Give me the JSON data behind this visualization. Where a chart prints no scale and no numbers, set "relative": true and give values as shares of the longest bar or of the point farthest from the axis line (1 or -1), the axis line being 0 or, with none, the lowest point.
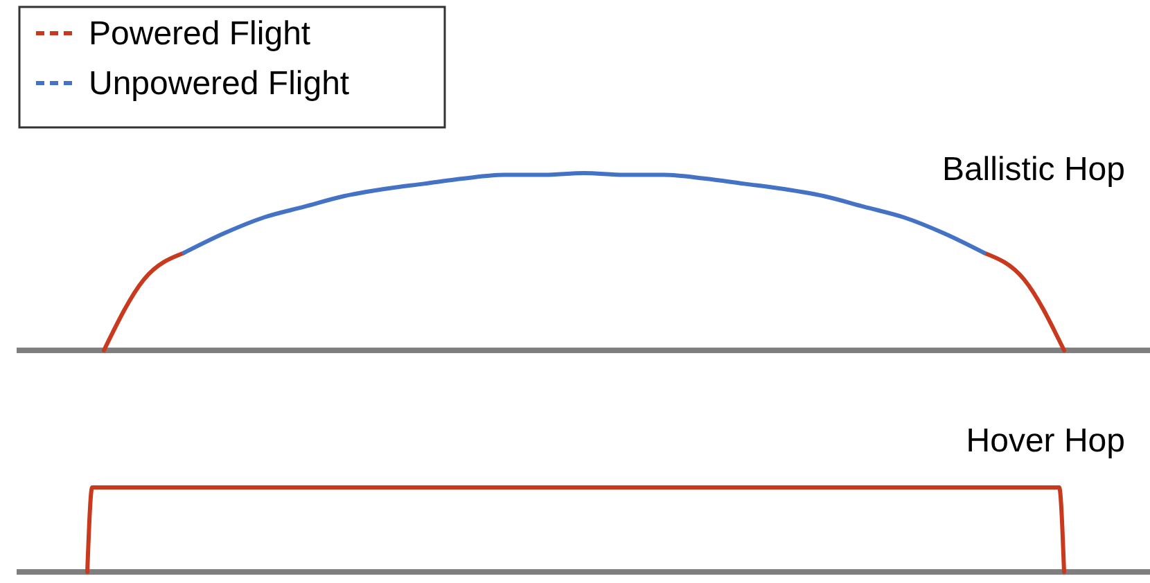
{
  "chart_data": [
    {
      "type": "line",
      "title": "Ballistic Hop",
      "relative": true,
      "legend": "top left",
      "categories": [
        null,
        null,
        null,
        null,
        null,
        null,
        null,
        null,
        null,
        null,
        null,
        null,
        null,
        null,
        null,
        null,
        null,
        null,
        null,
        null,
        null,
        null,
        null,
        null,
        null
      ],
      "series": [
        {
          "name": "Powered Flight",
          "color": "#c8391e",
          "values": [
            0,
            0.4,
            0.55,
            null,
            null,
            null,
            null,
            null,
            null,
            null,
            null,
            null,
            null,
            null,
            null,
            null,
            null,
            null,
            null,
            null,
            null,
            null,
            0.55,
            0.4,
            0
          ]
        },
        {
          "name": "Unpowered Flight",
          "color": "#4472c4",
          "values": [
            null,
            null,
            0.55,
            0.66,
            0.75,
            0.81,
            0.87,
            0.91,
            0.94,
            0.97,
            0.99,
            0.99,
            1,
            0.99,
            0.99,
            0.97,
            0.94,
            0.91,
            0.87,
            0.81,
            0.75,
            0.66,
            0.55,
            null,
            null
          ]
        }
      ]
    },
    {
      "type": "line",
      "title": "Hover Hop",
      "relative": true,
      "categories": [
        null,
        null,
        null,
        null,
        null,
        null,
        null,
        null,
        null,
        null,
        null,
        null,
        null,
        null,
        null,
        null,
        null,
        null,
        null,
        null,
        null,
        null,
        null,
        null,
        null,
        null,
        null,
        null,
        null,
        null,
        null,
        null,
        null,
        null,
        null,
        null,
        null,
        null,
        null,
        null,
        null,
        null,
        null,
        null,
        null,
        null,
        null,
        null,
        null,
        null,
        null,
        null,
        null,
        null,
        null,
        null,
        null,
        null,
        null,
        null,
        null,
        null,
        null,
        null,
        null,
        null,
        null,
        null,
        null,
        null,
        null,
        null,
        null,
        null,
        null,
        null,
        null,
        null,
        null,
        null,
        null,
        null,
        null,
        null,
        null,
        null,
        null,
        null,
        null,
        null,
        null,
        null,
        null,
        null,
        null,
        null,
        null,
        null,
        null,
        null,
        null,
        null,
        null,
        null,
        null,
        null,
        null,
        null,
        null,
        null,
        null,
        null,
        null,
        null,
        null,
        null,
        null,
        null,
        null,
        null,
        null,
        null,
        null,
        null,
        null,
        null,
        null,
        null,
        null,
        null,
        null,
        null,
        null,
        null,
        null,
        null,
        null,
        null,
        null,
        null,
        null,
        null,
        null,
        null,
        null,
        null,
        null,
        null,
        null,
        null,
        null,
        null,
        null,
        null,
        null,
        null,
        null,
        null,
        null,
        null,
        null,
        null,
        null,
        null,
        null,
        null,
        null,
        null,
        null,
        null,
        null,
        null,
        null,
        null,
        null,
        null,
        null,
        null,
        null,
        null,
        null,
        null,
        null,
        null,
        null,
        null,
        null,
        null,
        null,
        null,
        null,
        null,
        null,
        null,
        null,
        null,
        null,
        null,
        null,
        null,
        null
      ],
      "series": [
        {
          "color": "#c8391e",
          "values": [
            0,
            1,
            1,
            1,
            1,
            1,
            1,
            1,
            1,
            1,
            1,
            1,
            1,
            1,
            1,
            1,
            1,
            1,
            1,
            1,
            1,
            1,
            1,
            1,
            1,
            1,
            1,
            1,
            1,
            1,
            1,
            1,
            1,
            1,
            1,
            1,
            1,
            1,
            1,
            1,
            1,
            1,
            1,
            1,
            1,
            1,
            1,
            1,
            1,
            1,
            1,
            1,
            1,
            1,
            1,
            1,
            1,
            1,
            1,
            1,
            1,
            1,
            1,
            1,
            1,
            1,
            1,
            1,
            1,
            1,
            1,
            1,
            1,
            1,
            1,
            1,
            1,
            1,
            1,
            1,
            1,
            1,
            1,
            1,
            1,
            1,
            1,
            1,
            1,
            1,
            1,
            1,
            1,
            1,
            1,
            1,
            1,
            1,
            1,
            1,
            1,
            1,
            1,
            1,
            1,
            1,
            1,
            1,
            1,
            1,
            1,
            1,
            1,
            1,
            1,
            1,
            1,
            1,
            1,
            1,
            1,
            1,
            1,
            1,
            1,
            1,
            1,
            1,
            1,
            1,
            1,
            1,
            1,
            1,
            1,
            1,
            1,
            1,
            1,
            1,
            1,
            1,
            1,
            1,
            1,
            1,
            1,
            1,
            1,
            1,
            1,
            1,
            1,
            1,
            1,
            1,
            1,
            1,
            1,
            1,
            1,
            1,
            1,
            1,
            1,
            1,
            1,
            1,
            1,
            1,
            1,
            1,
            1,
            1,
            1,
            1,
            1,
            1,
            1,
            1,
            1,
            1,
            1,
            1,
            1,
            1,
            1,
            1,
            1,
            1,
            1,
            1,
            1,
            1,
            1,
            1,
            1,
            1,
            1,
            1,
            0
          ]
        }
      ]
    }
  ]
}
